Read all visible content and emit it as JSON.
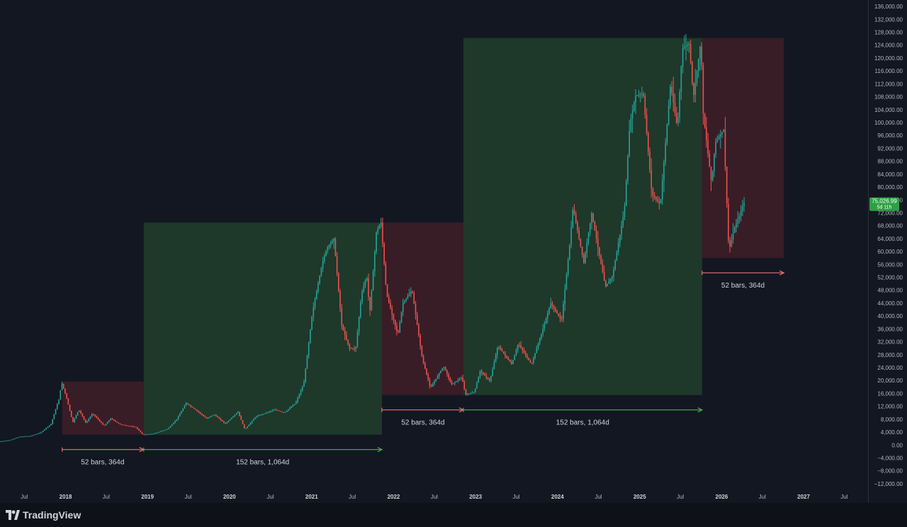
{
  "app": {
    "logo_text": "TradingView"
  },
  "colors": {
    "background": "#131722",
    "up": "#26a69a",
    "down": "#ef5350",
    "green_box": "#1f3a2b",
    "red_box": "#3a1e27",
    "range_green": "#4caf50",
    "range_red": "#e5737a",
    "badge": "#2ea043",
    "axis_text": "#b2b5be"
  },
  "chart_data": {
    "type": "candlestick",
    "title": "",
    "xlabel": "",
    "ylabel": "",
    "ylim": [
      -14000,
      138000
    ],
    "x_range": [
      "2017-03-15",
      "2027-10-15"
    ],
    "y_ticks": [
      136000,
      132000,
      128000,
      124000,
      120000,
      116000,
      112000,
      108000,
      104000,
      100000,
      96000,
      92000,
      88000,
      84000,
      80000,
      76000,
      72000,
      68000,
      64000,
      60000,
      56000,
      52000,
      48000,
      44000,
      40000,
      36000,
      32000,
      28000,
      24000,
      20000,
      16000,
      12000,
      8000,
      4000,
      0,
      -4000,
      -8000,
      -12000
    ],
    "y_tick_labels": [
      "136,000.00",
      "132,000.00",
      "128,000.00",
      "124,000.00",
      "120,000.00",
      "116,000.00",
      "112,000.00",
      "108,000.00",
      "104,000.00",
      "100,000.00",
      "96,000.00",
      "92,000.00",
      "88,000.00",
      "84,000.00",
      "80,000.00",
      "76,000.00",
      "72,000.00",
      "68,000.00",
      "64,000.00",
      "60,000.00",
      "56,000.00",
      "52,000.00",
      "48,000.00",
      "44,000.00",
      "40,000.00",
      "36,000.00",
      "32,000.00",
      "28,000.00",
      "24,000.00",
      "20,000.00",
      "16,000.00",
      "12,000.00",
      "8,000.00",
      "4,000.00",
      "0.00",
      "−4,000.00",
      "−8,000.00",
      "−12,000.00"
    ],
    "x_ticks": [
      {
        "date": "2017-07-01",
        "label": "Jul",
        "major": false
      },
      {
        "date": "2018-01-01",
        "label": "2018",
        "major": true
      },
      {
        "date": "2018-07-01",
        "label": "Jul",
        "major": false
      },
      {
        "date": "2019-01-01",
        "label": "2019",
        "major": true
      },
      {
        "date": "2019-07-01",
        "label": "Jul",
        "major": false
      },
      {
        "date": "2020-01-01",
        "label": "2020",
        "major": true
      },
      {
        "date": "2020-07-01",
        "label": "Jul",
        "major": false
      },
      {
        "date": "2021-01-01",
        "label": "2021",
        "major": true
      },
      {
        "date": "2021-07-01",
        "label": "Jul",
        "major": false
      },
      {
        "date": "2022-01-01",
        "label": "2022",
        "major": true
      },
      {
        "date": "2022-07-01",
        "label": "Jul",
        "major": false
      },
      {
        "date": "2023-01-01",
        "label": "2023",
        "major": true
      },
      {
        "date": "2023-07-01",
        "label": "Jul",
        "major": false
      },
      {
        "date": "2024-01-01",
        "label": "2024",
        "major": true
      },
      {
        "date": "2024-07-01",
        "label": "Jul",
        "major": false
      },
      {
        "date": "2025-01-01",
        "label": "2025",
        "major": true
      },
      {
        "date": "2025-07-01",
        "label": "Jul",
        "major": false
      },
      {
        "date": "2026-01-01",
        "label": "2026",
        "major": true
      },
      {
        "date": "2026-07-01",
        "label": "Jul",
        "major": false
      },
      {
        "date": "2027-01-01",
        "label": "2027",
        "major": true
      },
      {
        "date": "2027-07-01",
        "label": "Jul",
        "major": false
      }
    ],
    "last_price": {
      "label": "75,026.99",
      "countdown": "5d 11h",
      "value": 75027
    },
    "price_path": [
      [
        "2017-03-15",
        1100
      ],
      [
        "2017-05-01",
        1500
      ],
      [
        "2017-06-15",
        2600
      ],
      [
        "2017-08-01",
        2800
      ],
      [
        "2017-09-15",
        3800
      ],
      [
        "2017-11-01",
        6500
      ],
      [
        "2017-12-10",
        15000
      ],
      [
        "2017-12-17",
        19700
      ],
      [
        "2018-01-10",
        14500
      ],
      [
        "2018-02-06",
        7000
      ],
      [
        "2018-03-05",
        11000
      ],
      [
        "2018-04-05",
        6800
      ],
      [
        "2018-05-05",
        9800
      ],
      [
        "2018-06-25",
        5900
      ],
      [
        "2018-07-25",
        8200
      ],
      [
        "2018-09-05",
        6400
      ],
      [
        "2018-11-15",
        5500
      ],
      [
        "2018-12-15",
        3200
      ],
      [
        "2019-02-01",
        3500
      ],
      [
        "2019-04-05",
        5000
      ],
      [
        "2019-05-15",
        8000
      ],
      [
        "2019-06-26",
        13000
      ],
      [
        "2019-08-15",
        10500
      ],
      [
        "2019-09-25",
        8200
      ],
      [
        "2019-10-28",
        9500
      ],
      [
        "2019-12-17",
        6600
      ],
      [
        "2020-02-12",
        10300
      ],
      [
        "2020-03-13",
        4800
      ],
      [
        "2020-05-01",
        8800
      ],
      [
        "2020-07-25",
        11000
      ],
      [
        "2020-09-05",
        10000
      ],
      [
        "2020-10-25",
        13000
      ],
      [
        "2020-12-01",
        19000
      ],
      [
        "2021-01-08",
        41000
      ],
      [
        "2021-02-20",
        56000
      ],
      [
        "2021-03-13",
        61000
      ],
      [
        "2021-04-14",
        64000
      ],
      [
        "2021-05-19",
        37000
      ],
      [
        "2021-06-22",
        30000
      ],
      [
        "2021-07-20",
        29800
      ],
      [
        "2021-08-15",
        47000
      ],
      [
        "2021-09-07",
        52500
      ],
      [
        "2021-09-21",
        41000
      ],
      [
        "2021-10-20",
        66000
      ],
      [
        "2021-11-10",
        69000
      ],
      [
        "2021-12-04",
        47000
      ],
      [
        "2022-01-24",
        34000
      ],
      [
        "2022-02-15",
        44000
      ],
      [
        "2022-03-28",
        48000
      ],
      [
        "2022-05-12",
        27000
      ],
      [
        "2022-06-18",
        17600
      ],
      [
        "2022-08-15",
        24500
      ],
      [
        "2022-09-20",
        18800
      ],
      [
        "2022-11-05",
        21000
      ],
      [
        "2022-11-21",
        15500
      ],
      [
        "2022-12-31",
        16500
      ],
      [
        "2023-01-25",
        23000
      ],
      [
        "2023-03-10",
        19800
      ],
      [
        "2023-04-14",
        30800
      ],
      [
        "2023-06-15",
        25000
      ],
      [
        "2023-07-14",
        31500
      ],
      [
        "2023-09-11",
        25000
      ],
      [
        "2023-10-25",
        34500
      ],
      [
        "2023-12-06",
        44000
      ],
      [
        "2024-01-23",
        38500
      ],
      [
        "2024-02-28",
        62000
      ],
      [
        "2024-03-14",
        73700
      ],
      [
        "2024-05-01",
        56500
      ],
      [
        "2024-06-05",
        71900
      ],
      [
        "2024-08-05",
        49000
      ],
      [
        "2024-09-06",
        52500
      ],
      [
        "2024-10-29",
        73000
      ],
      [
        "2024-11-22",
        99500
      ],
      [
        "2024-12-17",
        108300
      ],
      [
        "2025-01-21",
        109000
      ],
      [
        "2025-02-28",
        78000
      ],
      [
        "2025-04-07",
        74500
      ],
      [
        "2025-05-22",
        111900
      ],
      [
        "2025-06-22",
        98200
      ],
      [
        "2025-07-14",
        123000
      ],
      [
        "2025-08-14",
        124400
      ],
      [
        "2025-09-01",
        107500
      ],
      [
        "2025-10-06",
        126200
      ],
      [
        "2025-10-11",
        105000
      ],
      [
        "2025-11-21",
        81000
      ],
      [
        "2025-12-08",
        94000
      ],
      [
        "2026-01-14",
        97800
      ],
      [
        "2026-02-06",
        60100
      ],
      [
        "2026-03-01",
        67000
      ],
      [
        "2026-03-25",
        71000
      ],
      [
        "2026-04-12",
        75027
      ]
    ],
    "annotations": [
      {
        "kind": "box",
        "tone": "down",
        "x_start": "2017-12-17",
        "x_end": "2018-12-15",
        "y_low": 3200,
        "y_high": 19700,
        "range_label": "52 bars, 364d",
        "label_x": "2018-06-15"
      },
      {
        "kind": "box",
        "tone": "up",
        "x_start": "2018-12-15",
        "x_end": "2021-11-10",
        "y_low": 3200,
        "y_high": 69000,
        "range_label": "152 bars, 1,064d",
        "label_x": "2020-05-28"
      },
      {
        "kind": "box",
        "tone": "down",
        "x_start": "2021-11-10",
        "x_end": "2022-11-08",
        "y_low": 15500,
        "y_high": 69000,
        "range_label": "52 bars, 364d",
        "label_x": "2022-05-12"
      },
      {
        "kind": "box",
        "tone": "up",
        "x_start": "2022-11-08",
        "x_end": "2025-10-06",
        "y_low": 15500,
        "y_high": 126200,
        "range_label": "152 bars, 1,064d",
        "label_x": "2024-04-22"
      },
      {
        "kind": "box",
        "tone": "down",
        "x_start": "2025-10-06",
        "x_end": "2026-10-05",
        "y_low": 58000,
        "y_high": 126200,
        "range_label": "52 bars, 364d",
        "label_x": "2026-04-06"
      }
    ]
  }
}
